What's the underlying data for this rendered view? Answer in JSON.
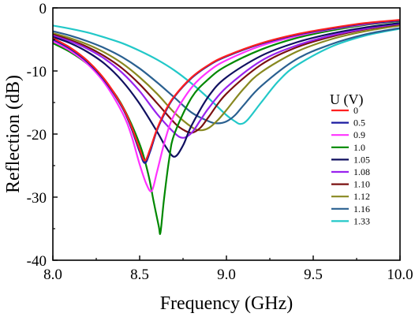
{
  "chart_data": {
    "type": "line",
    "xlabel": "Frequency (GHz)",
    "ylabel": "Reflection (dB)",
    "xlim": [
      8.0,
      10.0
    ],
    "ylim": [
      -40,
      0
    ],
    "xticks": [
      8.0,
      8.5,
      9.0,
      9.5,
      10.0
    ],
    "xtick_labels": [
      "8.0",
      "8.5",
      "9.0",
      "9.5",
      "10.0"
    ],
    "yticks": [
      0,
      -10,
      -20,
      -30,
      -40
    ],
    "ytick_labels": [
      "0",
      "-10",
      "-20",
      "-30",
      "-40"
    ],
    "grid": false,
    "legend_title": "U (V)",
    "legend_position": "right",
    "series": [
      {
        "name": "0",
        "color": "#ff2020",
        "x": [
          8.0,
          8.1,
          8.2,
          8.3,
          8.4,
          8.45,
          8.5,
          8.53,
          8.56,
          8.6,
          8.65,
          8.7,
          8.8,
          8.9,
          9.0,
          9.2,
          9.4,
          9.6,
          9.8,
          10.0
        ],
        "values": [
          -4.8,
          -6.3,
          -8.4,
          -11.4,
          -15.6,
          -18.6,
          -22.4,
          -24.2,
          -22.4,
          -19.2,
          -16.2,
          -14.0,
          -11.0,
          -9.0,
          -7.6,
          -5.6,
          -4.2,
          -3.2,
          -2.4,
          -1.9
        ]
      },
      {
        "name": "0.5",
        "color": "#1a1aa0",
        "x": [
          8.0,
          8.1,
          8.2,
          8.3,
          8.4,
          8.45,
          8.5,
          8.53,
          8.56,
          8.6,
          8.65,
          8.7,
          8.8,
          8.9,
          9.0,
          9.2,
          9.4,
          9.6,
          9.8,
          10.0
        ],
        "values": [
          -5.0,
          -6.5,
          -8.6,
          -11.6,
          -15.8,
          -18.9,
          -22.8,
          -24.6,
          -22.8,
          -19.4,
          -16.4,
          -14.1,
          -11.1,
          -9.1,
          -7.7,
          -5.7,
          -4.3,
          -3.3,
          -2.5,
          -2.0
        ]
      },
      {
        "name": "0.9",
        "color": "#ff33ff",
        "x": [
          8.0,
          8.1,
          8.2,
          8.3,
          8.4,
          8.45,
          8.5,
          8.54,
          8.57,
          8.6,
          8.65,
          8.7,
          8.8,
          8.9,
          9.0,
          9.2,
          9.4,
          9.6,
          9.8,
          10.0
        ],
        "values": [
          -5.3,
          -6.8,
          -8.9,
          -12.0,
          -16.6,
          -20.0,
          -24.8,
          -28.0,
          -29.0,
          -26.0,
          -20.6,
          -16.9,
          -12.6,
          -10.0,
          -8.3,
          -6.0,
          -4.5,
          -3.4,
          -2.6,
          -2.0
        ]
      },
      {
        "name": "1.0",
        "color": "#008800",
        "x": [
          8.0,
          8.1,
          8.2,
          8.3,
          8.4,
          8.5,
          8.55,
          8.58,
          8.61,
          8.62,
          8.64,
          8.67,
          8.7,
          8.8,
          8.9,
          9.0,
          9.2,
          9.4,
          9.6,
          9.8,
          10.0
        ],
        "values": [
          -5.6,
          -7.0,
          -8.9,
          -11.6,
          -15.5,
          -21.6,
          -26.4,
          -30.6,
          -34.6,
          -35.6,
          -30.4,
          -24.0,
          -20.0,
          -14.2,
          -11.2,
          -9.2,
          -6.6,
          -4.8,
          -3.6,
          -2.7,
          -2.1
        ]
      },
      {
        "name": "1.05",
        "color": "#101060",
        "x": [
          8.0,
          8.1,
          8.2,
          8.3,
          8.4,
          8.5,
          8.6,
          8.65,
          8.7,
          8.75,
          8.8,
          8.9,
          9.0,
          9.2,
          9.4,
          9.6,
          9.8,
          10.0
        ],
        "values": [
          -4.6,
          -5.6,
          -7.0,
          -8.9,
          -11.6,
          -15.2,
          -19.6,
          -22.0,
          -23.6,
          -21.8,
          -18.6,
          -13.9,
          -11.0,
          -7.6,
          -5.5,
          -4.1,
          -3.1,
          -2.4
        ]
      },
      {
        "name": "1.08",
        "color": "#9922ee",
        "x": [
          8.0,
          8.1,
          8.2,
          8.3,
          8.4,
          8.5,
          8.6,
          8.7,
          8.75,
          8.8,
          8.85,
          8.9,
          9.0,
          9.2,
          9.4,
          9.6,
          9.8,
          10.0
        ],
        "values": [
          -4.4,
          -5.3,
          -6.5,
          -8.1,
          -10.3,
          -13.2,
          -16.8,
          -19.8,
          -20.6,
          -19.8,
          -17.8,
          -15.8,
          -12.6,
          -8.4,
          -6.0,
          -4.4,
          -3.3,
          -2.5
        ]
      },
      {
        "name": "1.10",
        "color": "#7a1010",
        "x": [
          8.0,
          8.1,
          8.2,
          8.3,
          8.4,
          8.5,
          8.6,
          8.7,
          8.75,
          8.8,
          8.85,
          8.9,
          9.0,
          9.2,
          9.4,
          9.6,
          9.8,
          10.0
        ],
        "values": [
          -4.2,
          -5.1,
          -6.2,
          -7.7,
          -9.6,
          -12.1,
          -15.1,
          -18.2,
          -19.3,
          -19.8,
          -19.0,
          -17.2,
          -13.6,
          -9.0,
          -6.3,
          -4.6,
          -3.4,
          -2.6
        ]
      },
      {
        "name": "1.12",
        "color": "#888820",
        "x": [
          8.0,
          8.1,
          8.2,
          8.3,
          8.4,
          8.5,
          8.6,
          8.7,
          8.8,
          8.85,
          8.9,
          8.95,
          9.0,
          9.1,
          9.2,
          9.4,
          9.6,
          9.8,
          10.0
        ],
        "values": [
          -4.0,
          -4.8,
          -5.8,
          -7.1,
          -8.8,
          -11.0,
          -13.6,
          -16.6,
          -18.9,
          -19.4,
          -19.0,
          -17.8,
          -16.2,
          -12.8,
          -10.2,
          -7.0,
          -5.0,
          -3.7,
          -2.8
        ]
      },
      {
        "name": "1.16",
        "color": "#2a6090",
        "x": [
          8.0,
          8.1,
          8.2,
          8.3,
          8.4,
          8.5,
          8.6,
          8.7,
          8.8,
          8.9,
          8.95,
          9.0,
          9.05,
          9.1,
          9.2,
          9.4,
          9.6,
          9.8,
          10.0
        ],
        "values": [
          -3.7,
          -4.4,
          -5.3,
          -6.4,
          -7.8,
          -9.6,
          -11.8,
          -14.2,
          -16.6,
          -18.0,
          -18.3,
          -18.0,
          -17.0,
          -15.4,
          -12.4,
          -8.2,
          -5.8,
          -4.2,
          -3.2
        ]
      },
      {
        "name": "1.33",
        "color": "#22c8c8",
        "x": [
          8.0,
          8.1,
          8.2,
          8.3,
          8.4,
          8.5,
          8.6,
          8.7,
          8.8,
          8.9,
          9.0,
          9.05,
          9.08,
          9.12,
          9.2,
          9.3,
          9.4,
          9.6,
          9.8,
          10.0
        ],
        "values": [
          -2.8,
          -3.3,
          -3.9,
          -4.7,
          -5.6,
          -6.8,
          -8.2,
          -9.9,
          -12.0,
          -14.4,
          -17.0,
          -18.0,
          -18.4,
          -17.8,
          -15.0,
          -11.6,
          -9.2,
          -6.2,
          -4.4,
          -3.3
        ]
      }
    ]
  }
}
